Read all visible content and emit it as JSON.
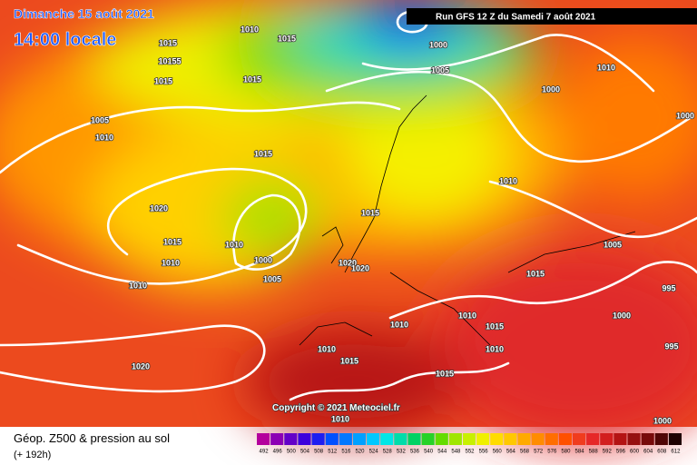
{
  "header": {
    "date": "Dimanche 15 août 2021",
    "time": "14:00 locale",
    "run": "Run GFS 12 Z du Samedi 7 août 2021"
  },
  "copyright": "Copyright © 2021 Meteociel.fr",
  "legend": {
    "title": "Géop. Z500 & pression au sol",
    "lead": "(+ 192h)",
    "scale": [
      492,
      496,
      500,
      504,
      508,
      512,
      516,
      520,
      524,
      528,
      532,
      536,
      540,
      544,
      548,
      552,
      556,
      560,
      564,
      568,
      572,
      576,
      580,
      584,
      588,
      592,
      596,
      600,
      604,
      608,
      612
    ],
    "colors": [
      "#b4009c",
      "#8c00b4",
      "#6400c8",
      "#3c00dc",
      "#1e1ef0",
      "#0050ff",
      "#0078ff",
      "#00a0ff",
      "#00c8ff",
      "#00e6e6",
      "#00dcaa",
      "#00d264",
      "#28d228",
      "#64dc00",
      "#a0e600",
      "#c8f000",
      "#f0f000",
      "#ffdc00",
      "#ffc800",
      "#ffaa00",
      "#ff8c00",
      "#ff6e00",
      "#ff5000",
      "#f03c1e",
      "#e62828",
      "#d21e1e",
      "#b41414",
      "#961010",
      "#780a0a",
      "#500505",
      "#1e0000"
    ]
  },
  "isobars": [
    "1015",
    "1010",
    "1015",
    "10155",
    "1015",
    "1015",
    "995",
    "1000",
    "1005",
    "1010",
    "1000",
    "1000",
    "1005",
    "1010",
    "1015",
    "1010",
    "1015",
    "1020",
    "1015",
    "1010",
    "1010",
    "1000",
    "1005",
    "1020",
    "1020",
    "1005",
    "1015",
    "995",
    "1010",
    "1010",
    "1015",
    "1010",
    "1000",
    "1010",
    "995",
    "1010",
    "1015",
    "1020",
    "1015",
    "1010",
    "1000"
  ]
}
